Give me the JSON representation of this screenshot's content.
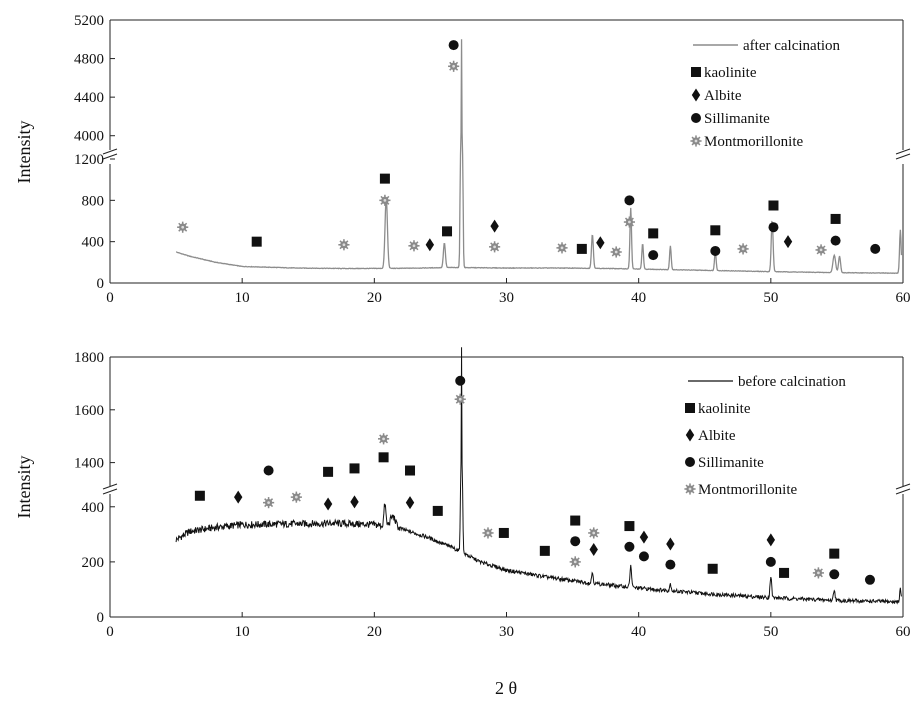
{
  "chart_data": [
    {
      "type": "line",
      "id": "after",
      "ylabel": "Intensity",
      "xlim": [
        0,
        60
      ],
      "xticks": [
        0,
        10,
        20,
        30,
        40,
        50,
        60
      ],
      "y_lower": [
        0,
        1200
      ],
      "y_upper": [
        3800,
        5200
      ],
      "yticks_lower": [
        0,
        400,
        800,
        1200
      ],
      "yticks_upper": [
        4000,
        4400,
        4800,
        5200
      ],
      "series": [
        {
          "name": "after calcination",
          "baseline": [
            [
              5,
              300
            ],
            [
              6,
              260
            ],
            [
              8,
              200
            ],
            [
              10,
              160
            ],
            [
              14,
              145
            ],
            [
              18,
              140
            ],
            [
              22,
              142
            ],
            [
              26,
              150
            ],
            [
              30,
              145
            ],
            [
              34,
              145
            ],
            [
              38,
              140
            ],
            [
              42,
              130
            ],
            [
              46,
              120
            ],
            [
              50,
              110
            ],
            [
              55,
              100
            ],
            [
              59.5,
              95
            ]
          ],
          "peaks": [
            [
              20.9,
              690,
              0.18
            ],
            [
              25.3,
              240,
              0.15
            ],
            [
              26.6,
              4850,
              0.12
            ],
            [
              36.5,
              330,
              0.14
            ],
            [
              39.4,
              590,
              0.12
            ],
            [
              40.3,
              250,
              0.12
            ],
            [
              42.4,
              230,
              0.12
            ],
            [
              45.8,
              190,
              0.12
            ],
            [
              50.1,
              500,
              0.14
            ],
            [
              54.8,
              170,
              0.2
            ],
            [
              55.2,
              160,
              0.15
            ],
            [
              59.8,
              420,
              0.12
            ]
          ]
        }
      ],
      "markers": [
        {
          "x": 5.5,
          "y": 540,
          "kind": "montmorillonite"
        },
        {
          "x": 11.1,
          "y": 400,
          "kind": "kaolinite"
        },
        {
          "x": 17.7,
          "y": 370,
          "kind": "montmorillonite"
        },
        {
          "x": 20.8,
          "y": 1010,
          "kind": "kaolinite"
        },
        {
          "x": 20.8,
          "y": 800,
          "kind": "montmorillonite"
        },
        {
          "x": 23.0,
          "y": 360,
          "kind": "montmorillonite"
        },
        {
          "x": 24.2,
          "y": 370,
          "kind": "albite"
        },
        {
          "x": 25.5,
          "y": 500,
          "kind": "kaolinite"
        },
        {
          "x": 26.0,
          "y": 4940,
          "kind": "sillimanite"
        },
        {
          "x": 26.0,
          "y": 4720,
          "kind": "montmorillonite"
        },
        {
          "x": 29.1,
          "y": 550,
          "kind": "albite"
        },
        {
          "x": 29.1,
          "y": 350,
          "kind": "montmorillonite"
        },
        {
          "x": 34.2,
          "y": 340,
          "kind": "montmorillonite"
        },
        {
          "x": 35.7,
          "y": 330,
          "kind": "kaolinite"
        },
        {
          "x": 37.1,
          "y": 390,
          "kind": "albite"
        },
        {
          "x": 38.3,
          "y": 300,
          "kind": "montmorillonite"
        },
        {
          "x": 39.3,
          "y": 800,
          "kind": "sillimanite"
        },
        {
          "x": 39.3,
          "y": 590,
          "kind": "montmorillonite"
        },
        {
          "x": 41.1,
          "y": 480,
          "kind": "kaolinite"
        },
        {
          "x": 41.1,
          "y": 270,
          "kind": "sillimanite"
        },
        {
          "x": 45.8,
          "y": 510,
          "kind": "kaolinite"
        },
        {
          "x": 45.8,
          "y": 310,
          "kind": "sillimanite"
        },
        {
          "x": 47.9,
          "y": 330,
          "kind": "montmorillonite"
        },
        {
          "x": 50.2,
          "y": 750,
          "kind": "kaolinite"
        },
        {
          "x": 50.2,
          "y": 540,
          "kind": "sillimanite"
        },
        {
          "x": 51.3,
          "y": 400,
          "kind": "albite"
        },
        {
          "x": 53.8,
          "y": 320,
          "kind": "montmorillonite"
        },
        {
          "x": 54.9,
          "y": 620,
          "kind": "kaolinite"
        },
        {
          "x": 54.9,
          "y": 410,
          "kind": "sillimanite"
        },
        {
          "x": 57.9,
          "y": 330,
          "kind": "sillimanite"
        }
      ],
      "legend": {
        "placement": "top-right",
        "line_label": "after calcination",
        "entries": [
          {
            "kind": "kaolinite",
            "label": "kaolinite"
          },
          {
            "kind": "albite",
            "label": "Albite"
          },
          {
            "kind": "sillimanite",
            "label": "Sillimanite"
          },
          {
            "kind": "montmorillonite",
            "label": "Montmorillonite"
          }
        ]
      },
      "line_color": "#8c8c8c"
    },
    {
      "type": "line",
      "id": "before",
      "ylabel": "Intensity",
      "xlabel": "2 θ",
      "xlim": [
        0,
        60
      ],
      "xticks": [
        0,
        10,
        20,
        30,
        40,
        50,
        60
      ],
      "y_lower": [
        0,
        450
      ],
      "y_upper": [
        1300,
        1800
      ],
      "yticks_lower": [
        0,
        200,
        400
      ],
      "yticks_upper": [
        1400,
        1600,
        1800
      ],
      "series": [
        {
          "name": "before calcination",
          "baseline": [
            [
              5,
              280
            ],
            [
              6,
              310
            ],
            [
              8,
              325
            ],
            [
              10,
              335
            ],
            [
              14,
              338
            ],
            [
              17,
              340
            ],
            [
              20,
              335
            ],
            [
              22,
              320
            ],
            [
              24,
              290
            ],
            [
              26,
              250
            ],
            [
              28,
              200
            ],
            [
              30,
              170
            ],
            [
              33,
              145
            ],
            [
              36,
              125
            ],
            [
              40,
              105
            ],
            [
              45,
              85
            ],
            [
              50,
              70
            ],
            [
              55,
              60
            ],
            [
              59.5,
              55
            ]
          ],
          "peaks": [
            [
              20.8,
              80,
              0.15
            ],
            [
              21.4,
              40,
              0.4
            ],
            [
              26.6,
              1600,
              0.1
            ],
            [
              36.5,
              40,
              0.12
            ],
            [
              39.4,
              80,
              0.12
            ],
            [
              42.4,
              25,
              0.12
            ],
            [
              50.0,
              80,
              0.12
            ],
            [
              54.8,
              40,
              0.12
            ],
            [
              59.8,
              50,
              0.1
            ]
          ]
        }
      ],
      "markers": [
        {
          "x": 6.8,
          "y": 440,
          "kind": "kaolinite"
        },
        {
          "x": 9.7,
          "y": 435,
          "kind": "albite"
        },
        {
          "x": 12.0,
          "y": 1370,
          "kind": "sillimanite"
        },
        {
          "x": 12.0,
          "y": 415,
          "kind": "montmorillonite"
        },
        {
          "x": 14.1,
          "y": 435,
          "kind": "montmorillonite"
        },
        {
          "x": 16.5,
          "y": 1365,
          "kind": "kaolinite"
        },
        {
          "x": 16.5,
          "y": 410,
          "kind": "albite"
        },
        {
          "x": 18.5,
          "y": 1378,
          "kind": "kaolinite"
        },
        {
          "x": 18.5,
          "y": 418,
          "kind": "albite"
        },
        {
          "x": 20.7,
          "y": 1490,
          "kind": "montmorillonite"
        },
        {
          "x": 20.7,
          "y": 1420,
          "kind": "kaolinite"
        },
        {
          "x": 22.7,
          "y": 1370,
          "kind": "kaolinite"
        },
        {
          "x": 22.7,
          "y": 415,
          "kind": "albite"
        },
        {
          "x": 24.8,
          "y": 385,
          "kind": "kaolinite"
        },
        {
          "x": 26.5,
          "y": 1710,
          "kind": "sillimanite"
        },
        {
          "x": 26.5,
          "y": 1640,
          "kind": "montmorillonite"
        },
        {
          "x": 28.6,
          "y": 305,
          "kind": "montmorillonite"
        },
        {
          "x": 29.8,
          "y": 305,
          "kind": "kaolinite"
        },
        {
          "x": 32.9,
          "y": 240,
          "kind": "kaolinite"
        },
        {
          "x": 35.2,
          "y": 350,
          "kind": "kaolinite"
        },
        {
          "x": 35.2,
          "y": 275,
          "kind": "sillimanite"
        },
        {
          "x": 35.2,
          "y": 200,
          "kind": "montmorillonite"
        },
        {
          "x": 36.6,
          "y": 305,
          "kind": "montmorillonite"
        },
        {
          "x": 36.6,
          "y": 245,
          "kind": "albite"
        },
        {
          "x": 39.3,
          "y": 330,
          "kind": "kaolinite"
        },
        {
          "x": 39.3,
          "y": 255,
          "kind": "sillimanite"
        },
        {
          "x": 40.4,
          "y": 290,
          "kind": "albite"
        },
        {
          "x": 40.4,
          "y": 220,
          "kind": "sillimanite"
        },
        {
          "x": 42.4,
          "y": 265,
          "kind": "albite"
        },
        {
          "x": 42.4,
          "y": 190,
          "kind": "sillimanite"
        },
        {
          "x": 45.6,
          "y": 175,
          "kind": "kaolinite"
        },
        {
          "x": 50.0,
          "y": 280,
          "kind": "albite"
        },
        {
          "x": 50.0,
          "y": 200,
          "kind": "sillimanite"
        },
        {
          "x": 51.0,
          "y": 160,
          "kind": "kaolinite"
        },
        {
          "x": 53.6,
          "y": 160,
          "kind": "montmorillonite"
        },
        {
          "x": 54.8,
          "y": 230,
          "kind": "kaolinite"
        },
        {
          "x": 54.8,
          "y": 155,
          "kind": "sillimanite"
        },
        {
          "x": 57.5,
          "y": 135,
          "kind": "sillimanite"
        }
      ],
      "legend": {
        "placement": "top-right",
        "line_label": "before calcination",
        "entries": [
          {
            "kind": "kaolinite",
            "label": "kaolinite"
          },
          {
            "kind": "albite",
            "label": "Albite"
          },
          {
            "kind": "sillimanite",
            "label": "Sillimanite"
          },
          {
            "kind": "montmorillonite",
            "label": "Montmorillonite"
          }
        ]
      },
      "line_color": "#111111"
    }
  ]
}
